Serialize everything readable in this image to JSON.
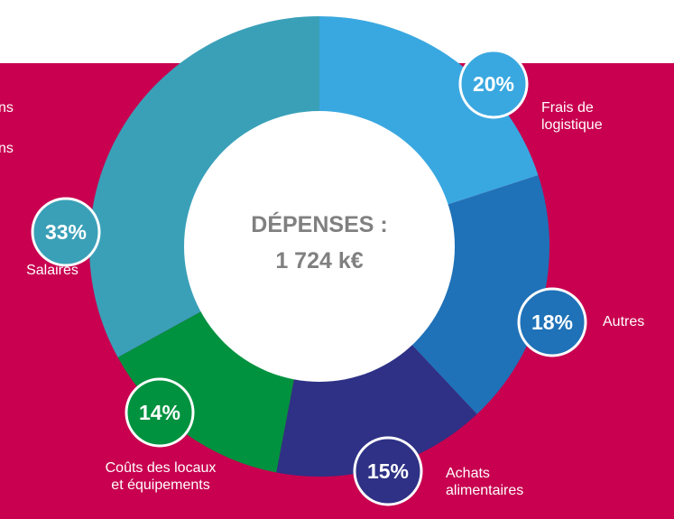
{
  "cropped_text": [
    "ns",
    "ns"
  ],
  "chart_data": {
    "type": "donut",
    "center_text": [
      "DÉPENSES :",
      "1 724 k€"
    ],
    "categories": [
      "Frais de\nlogistique",
      "Autres",
      "Achats\nalimentaires",
      "Coûts des locaux\net équipements",
      "Salaires"
    ],
    "values": [
      20,
      18,
      15,
      14,
      33
    ],
    "value_labels": [
      "20%",
      "18%",
      "15%",
      "14%",
      "33%"
    ],
    "colors": [
      "#3aa8e0",
      "#1f72b8",
      "#2e3185",
      "#00923f",
      "#3aa0b8"
    ]
  }
}
